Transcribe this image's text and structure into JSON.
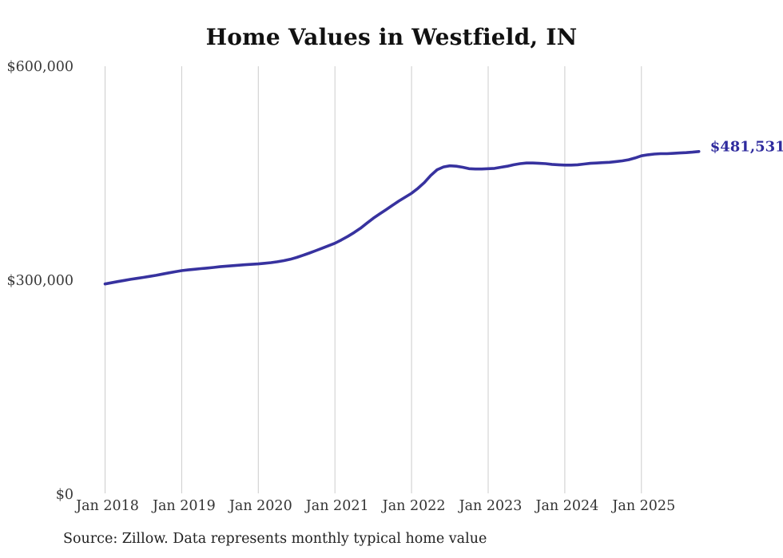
{
  "page": {
    "title": "Home Values in Westfield, IN",
    "latest_value_label": "$481,531",
    "source_note": "Source: Zillow. Data represents monthly typical home value"
  },
  "colors": {
    "line": "#37329f",
    "latest_label": "#2f2b9e",
    "grid": "#cccccc",
    "axis_text": "#3a3a3a",
    "title_text": "#111111",
    "source_text": "#222222",
    "background": "#ffffff"
  },
  "chart_data": {
    "type": "line",
    "title": "Home Values in Westfield, IN",
    "xlabel": "",
    "ylabel": "",
    "unit": "USD",
    "grid": "vertical-only",
    "legend": false,
    "ylim": [
      0,
      600000
    ],
    "yticks": [
      {
        "value": 0,
        "label": "$0"
      },
      {
        "value": 300000,
        "label": "$300,000"
      },
      {
        "value": 600000,
        "label": "$600,000"
      }
    ],
    "xticks": [
      {
        "label": "Jan 2018",
        "month_index": 0
      },
      {
        "label": "Jan 2019",
        "month_index": 12
      },
      {
        "label": "Jan 2020",
        "month_index": 24
      },
      {
        "label": "Jan 2021",
        "month_index": 36
      },
      {
        "label": "Jan 2022",
        "month_index": 48
      },
      {
        "label": "Jan 2023",
        "month_index": 60
      },
      {
        "label": "Jan 2024",
        "month_index": 72
      },
      {
        "label": "Jan 2025",
        "month_index": 84
      }
    ],
    "annotation": {
      "text": "$481,531",
      "attached_to": "last-point"
    },
    "x": [
      "Jan 2018",
      "Feb 2018",
      "Mar 2018",
      "Apr 2018",
      "May 2018",
      "Jun 2018",
      "Jul 2018",
      "Aug 2018",
      "Sep 2018",
      "Oct 2018",
      "Nov 2018",
      "Dec 2018",
      "Jan 2019",
      "Feb 2019",
      "Mar 2019",
      "Apr 2019",
      "May 2019",
      "Jun 2019",
      "Jul 2019",
      "Aug 2019",
      "Sep 2019",
      "Oct 2019",
      "Nov 2019",
      "Dec 2019",
      "Jan 2020",
      "Feb 2020",
      "Mar 2020",
      "Apr 2020",
      "May 2020",
      "Jun 2020",
      "Jul 2020",
      "Aug 2020",
      "Sep 2020",
      "Oct 2020",
      "Nov 2020",
      "Dec 2020",
      "Jan 2021",
      "Feb 2021",
      "Mar 2021",
      "Apr 2021",
      "May 2021",
      "Jun 2021",
      "Jul 2021",
      "Aug 2021",
      "Sep 2021",
      "Oct 2021",
      "Nov 2021",
      "Dec 2021",
      "Jan 2022",
      "Feb 2022",
      "Mar 2022",
      "Apr 2022",
      "May 2022",
      "Jun 2022",
      "Jul 2022",
      "Aug 2022",
      "Sep 2022",
      "Oct 2022",
      "Nov 2022",
      "Dec 2022",
      "Jan 2023",
      "Feb 2023",
      "Mar 2023",
      "Apr 2023",
      "May 2023",
      "Jun 2023",
      "Jul 2023",
      "Aug 2023",
      "Sep 2023",
      "Oct 2023",
      "Nov 2023",
      "Dec 2023",
      "Jan 2024",
      "Feb 2024",
      "Mar 2024",
      "Apr 2024",
      "May 2024",
      "Jun 2024",
      "Jul 2024",
      "Aug 2024",
      "Sep 2024",
      "Oct 2024",
      "Nov 2024",
      "Dec 2024",
      "Jan 2025",
      "Feb 2025",
      "Mar 2025",
      "Apr 2025",
      "May 2025",
      "Jun 2025",
      "Jul 2025",
      "Aug 2025",
      "Sep 2025",
      "Oct 2025"
    ],
    "values": [
      295900,
      297500,
      299200,
      300800,
      302300,
      303700,
      305000,
      306500,
      308000,
      309700,
      311400,
      313000,
      314500,
      315600,
      316500,
      317300,
      318100,
      319000,
      320000,
      320800,
      321500,
      322200,
      322800,
      323400,
      324000,
      324800,
      325800,
      327000,
      328500,
      330500,
      333000,
      336000,
      339200,
      342500,
      346000,
      349500,
      353000,
      357500,
      362500,
      368000,
      374000,
      381000,
      388000,
      394000,
      400000,
      406000,
      412000,
      417500,
      423000,
      430000,
      438000,
      448000,
      456000,
      460000,
      461500,
      461000,
      459500,
      457500,
      457000,
      457000,
      457500,
      458000,
      459500,
      461000,
      463000,
      464500,
      465500,
      465500,
      465000,
      464500,
      463500,
      463000,
      462500,
      462500,
      463000,
      464000,
      465000,
      465500,
      466000,
      466500,
      467500,
      468500,
      470000,
      472500,
      475500,
      477000,
      478000,
      478500,
      478500,
      479000,
      479500,
      480000,
      480700,
      481531
    ]
  }
}
